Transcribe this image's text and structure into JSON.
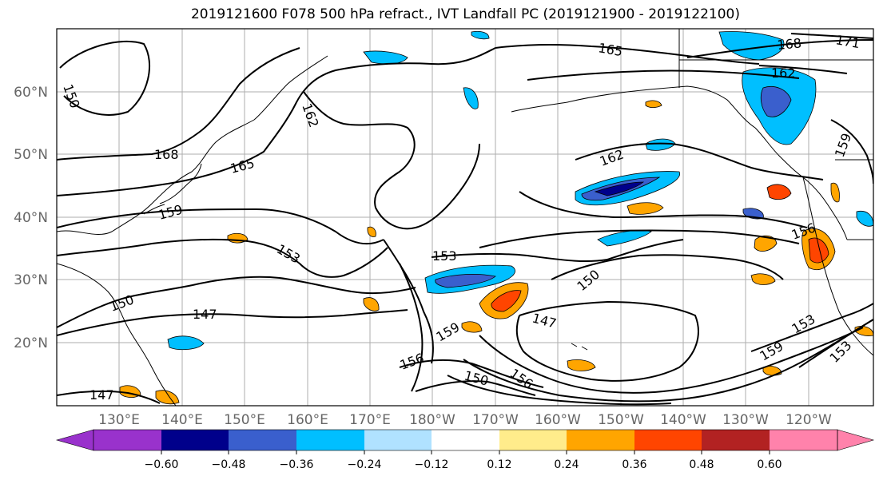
{
  "title": "2019121600 F078 500 hPa refract., IVT Landfall PC (2019121900 - 2019122100)",
  "map": {
    "lon_ticks": [
      "130°E",
      "140°E",
      "150°E",
      "160°E",
      "170°E",
      "180°W",
      "170°W",
      "160°W",
      "150°W",
      "140°W",
      "130°W",
      "120°W"
    ],
    "lat_ticks": [
      "20°N",
      "30°N",
      "40°N",
      "50°N",
      "60°N"
    ],
    "contour_labels": [
      "165",
      "168",
      "171",
      "162",
      "162",
      "165",
      "168",
      "159",
      "153",
      "150",
      "147",
      "153",
      "150",
      "147",
      "159",
      "156",
      "153",
      "159",
      "153",
      "150",
      "156",
      "159",
      "162",
      "156",
      "150",
      "147"
    ]
  },
  "colorbar": {
    "tick_labels": [
      "−0.60",
      "−0.48",
      "−0.36",
      "−0.24",
      "−0.12",
      "0.12",
      "0.24",
      "0.36",
      "0.48",
      "0.60"
    ],
    "colors": [
      "#9932cc",
      "#00008b",
      "#3a5fcd",
      "#00bfff",
      "#b0e2ff",
      "#ffffff",
      "#ffec8b",
      "#ffa500",
      "#ff4500",
      "#b22222",
      "#ff82ab"
    ]
  }
}
